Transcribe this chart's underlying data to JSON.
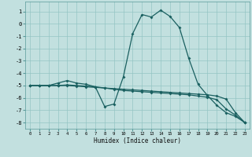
{
  "xlabel": "Humidex (Indice chaleur)",
  "xlim": [
    -0.5,
    23.5
  ],
  "ylim": [
    -8.5,
    1.8
  ],
  "yticks": [
    1,
    0,
    -1,
    -2,
    -3,
    -4,
    -5,
    -6,
    -7,
    -8
  ],
  "xticks": [
    0,
    1,
    2,
    3,
    4,
    5,
    6,
    7,
    8,
    9,
    10,
    11,
    12,
    13,
    14,
    15,
    16,
    17,
    18,
    19,
    20,
    21,
    22,
    23
  ],
  "bg_color": "#c2e0df",
  "grid_color": "#95c5c4",
  "line_color": "#1a6060",
  "line_width": 0.9,
  "marker": "D",
  "marker_size": 2.0,
  "lines": [
    {
      "x": [
        0,
        1,
        2,
        3,
        4,
        5,
        6,
        7,
        8,
        9,
        10,
        11,
        12,
        13,
        14,
        15,
        16,
        17,
        18,
        19,
        20,
        21,
        22,
        23
      ],
      "y": [
        -5.0,
        -5.0,
        -5.0,
        -4.8,
        -4.6,
        -4.8,
        -4.9,
        -5.1,
        -6.7,
        -6.5,
        -4.3,
        -0.8,
        0.75,
        0.55,
        1.1,
        0.6,
        -0.3,
        -2.8,
        -4.9,
        -5.8,
        -6.6,
        -7.2,
        -7.5,
        -8.0
      ]
    },
    {
      "x": [
        0,
        1,
        2,
        3,
        4,
        5,
        6,
        7,
        8,
        9,
        10,
        11,
        12,
        13,
        14,
        15,
        16,
        17,
        18,
        19,
        20,
        21,
        22,
        23
      ],
      "y": [
        -5.0,
        -5.0,
        -5.0,
        -5.0,
        -5.0,
        -5.05,
        -5.1,
        -5.15,
        -5.2,
        -5.25,
        -5.3,
        -5.35,
        -5.4,
        -5.45,
        -5.5,
        -5.55,
        -5.6,
        -5.65,
        -5.7,
        -5.75,
        -5.85,
        -6.1,
        -7.2,
        -8.0
      ]
    },
    {
      "x": [
        0,
        1,
        2,
        3,
        4,
        5,
        6,
        7,
        8,
        9,
        10,
        11,
        12,
        13,
        14,
        15,
        16,
        17,
        18,
        19,
        20,
        21,
        22,
        23
      ],
      "y": [
        -5.0,
        -5.0,
        -5.0,
        -5.0,
        -4.95,
        -5.0,
        -5.05,
        -5.1,
        -5.2,
        -5.3,
        -5.4,
        -5.45,
        -5.5,
        -5.55,
        -5.6,
        -5.65,
        -5.7,
        -5.75,
        -5.85,
        -5.95,
        -6.15,
        -6.9,
        -7.4,
        -8.0
      ]
    }
  ],
  "figwidth": 3.2,
  "figheight": 2.0,
  "dpi": 100
}
